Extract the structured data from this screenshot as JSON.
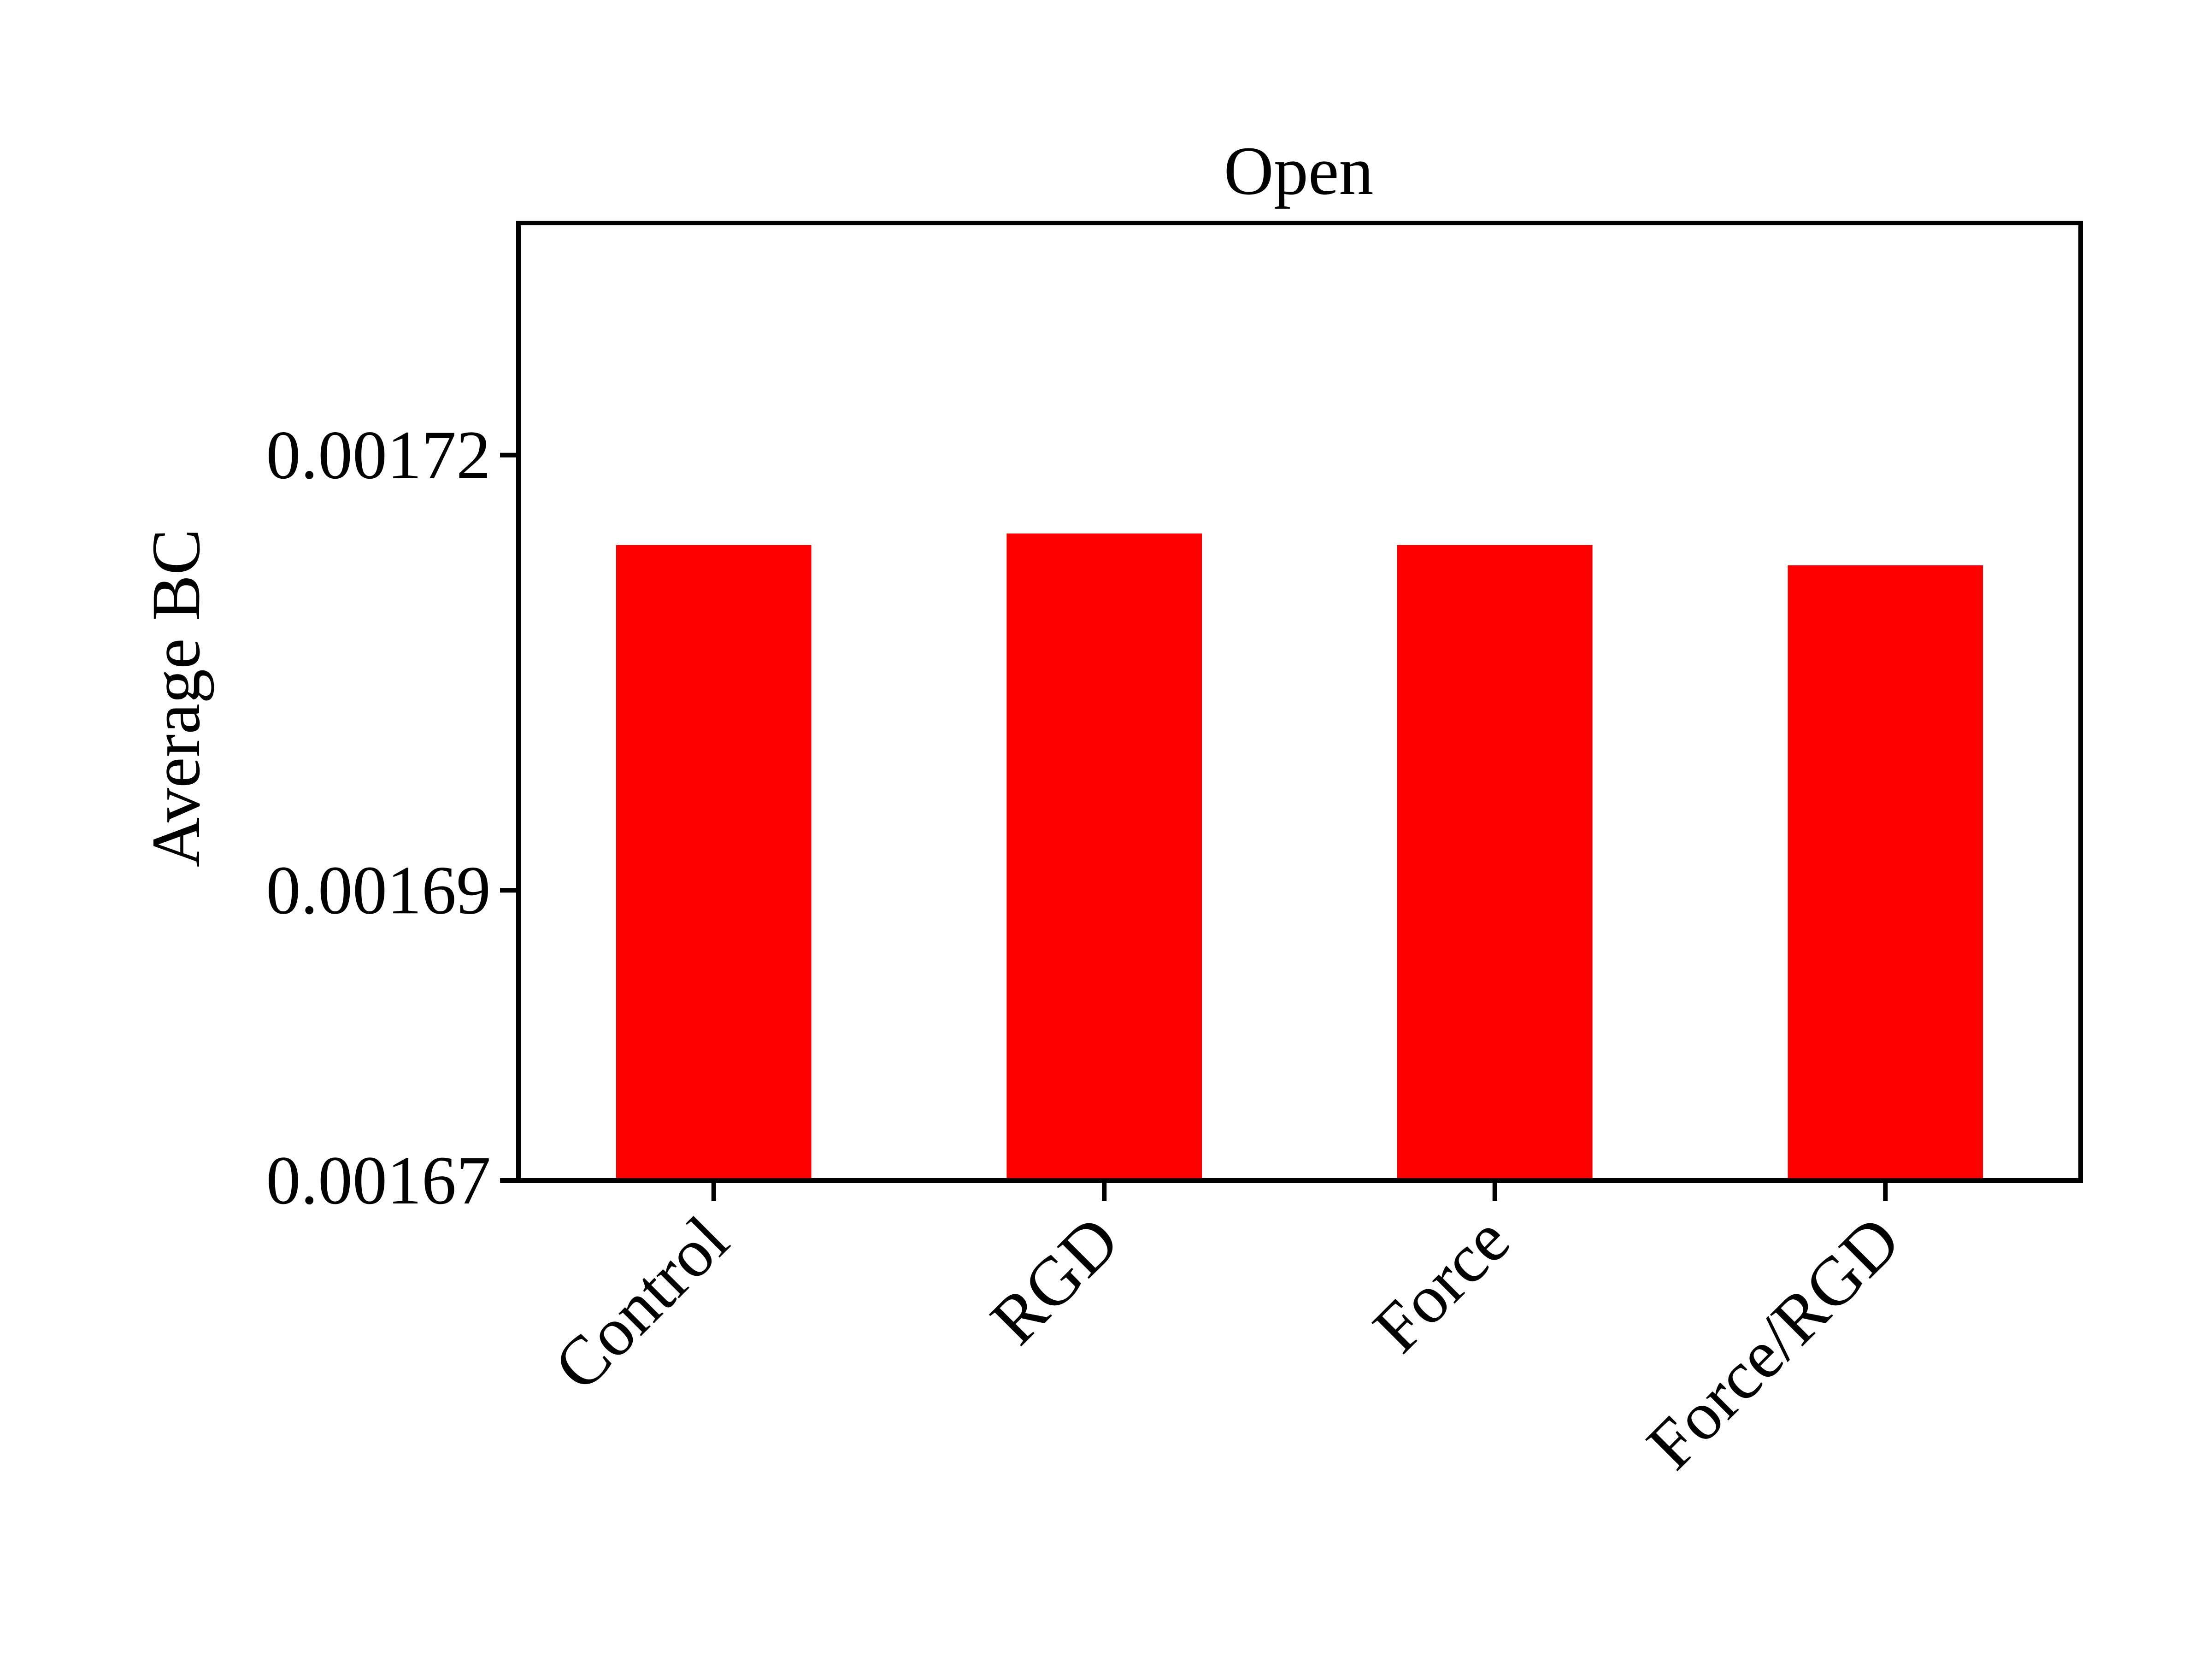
{
  "chart_data": {
    "type": "bar",
    "title": "Open",
    "xlabel": "",
    "ylabel": "Average BC",
    "categories": [
      "Control",
      "RGD",
      "Force",
      "Force/RGD"
    ],
    "values": [
      0.0017138,
      0.0017146,
      0.0017138,
      0.0017124
    ],
    "ylim": [
      0.00167,
      0.001736
    ],
    "yticks": [
      0.00167,
      0.00169,
      0.00172
    ],
    "ytick_labels": [
      "0.00167",
      "0.00169",
      "0.00172"
    ],
    "bar_color": "#ff0000",
    "axis_color": "#000000",
    "grid": false,
    "legend": "none"
  }
}
